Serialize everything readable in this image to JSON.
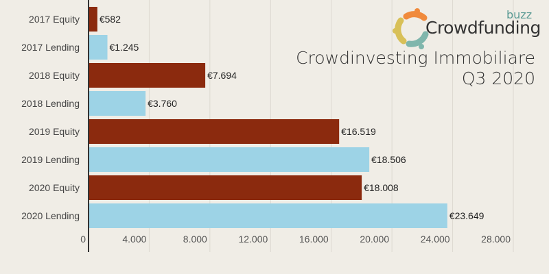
{
  "chart_data": {
    "type": "bar",
    "orientation": "horizontal",
    "title": "Crowdinvesting Immobiliare",
    "subtitle": "Q3 2020",
    "categories": [
      "2017 Equity",
      "2017 Lending",
      "2018 Equity",
      "2018 Lending",
      "2019 Equity",
      "2019 Lending",
      "2020 Equity",
      "2020 Lending"
    ],
    "values": [
      582,
      1245,
      7694,
      3760,
      16519,
      18506,
      18008,
      23649
    ],
    "data_labels": [
      "€582",
      "€1.245",
      "€7.694",
      "€3.760",
      "€16.519",
      "€18.506",
      "€18.008",
      "€23.649"
    ],
    "bar_colors": [
      "#8b2a0e",
      "#9dd3e6",
      "#8b2a0e",
      "#9dd3e6",
      "#8b2a0e",
      "#9dd3e6",
      "#8b2a0e",
      "#9dd3e6"
    ],
    "xticks": [
      "0",
      "4.000",
      "8.000",
      "12.000",
      "16.000",
      "20.000",
      "24.000",
      "28.000"
    ],
    "xtick_values": [
      0,
      4000,
      8000,
      12000,
      16000,
      20000,
      24000,
      28000
    ],
    "xlim": [
      0,
      28000
    ],
    "xlabel": "",
    "ylabel": "",
    "grid": true
  },
  "logo": {
    "brand": "Crowdfunding",
    "buzz": "buzz"
  }
}
